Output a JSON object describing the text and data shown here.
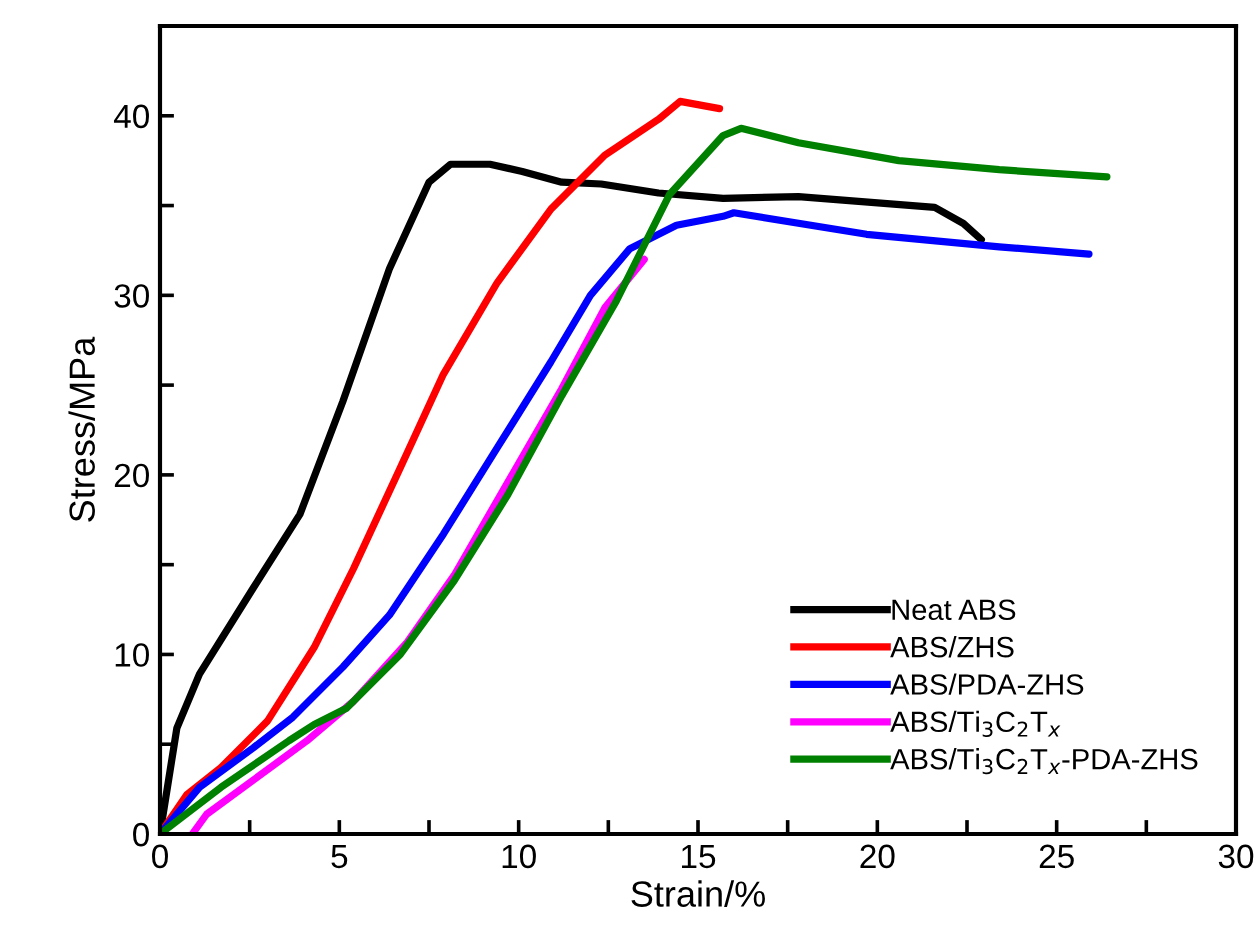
{
  "chart_data": {
    "type": "line",
    "xlabel": "Strain/%",
    "ylabel": "Stress/MPa",
    "xlim": [
      0,
      30
    ],
    "ylim": [
      0,
      45
    ],
    "xticks": [
      0,
      {
        "value": 2.5,
        "label": null
      },
      5,
      {
        "value": 7.5,
        "label": null
      },
      10,
      {
        "value": 12.5,
        "label": null
      },
      15,
      {
        "value": 17.5,
        "label": null
      },
      20,
      {
        "value": 22.5,
        "label": null
      },
      25,
      {
        "value": 27.5,
        "label": null
      },
      30
    ],
    "yticks": [
      0,
      {
        "value": 5,
        "label": null
      },
      10,
      {
        "value": 15,
        "label": null
      },
      20,
      {
        "value": 25,
        "label": null
      },
      30,
      {
        "value": 35,
        "label": null
      },
      40
    ],
    "grid": false,
    "legend": "bottom right",
    "marker": "none",
    "line_style": "solid",
    "series": [
      {
        "name": "Neat ABS",
        "color": "#000000",
        "x": [
          0,
          0.47,
          1.1,
          2.6,
          3.9,
          5.1,
          6.4,
          7.5,
          8.1,
          9.2,
          10.1,
          11.2,
          12.3,
          13.9,
          15.7,
          17.8,
          21.6,
          22.4,
          22.9
        ],
        "values": [
          0,
          5.9,
          8.9,
          13.7,
          17.8,
          24.1,
          31.5,
          36.3,
          37.3,
          37.3,
          36.9,
          36.3,
          36.2,
          35.7,
          35.4,
          35.5,
          34.9,
          34.0,
          33.1
        ]
      },
      {
        "name": "ABS/ZHS",
        "color": "#ff0000",
        "x": [
          0,
          0.75,
          1.7,
          3.0,
          4.3,
          5.4,
          6.7,
          7.9,
          9.4,
          10.9,
          12.4,
          13.9,
          14.5,
          15.6
        ],
        "values": [
          0,
          2.2,
          3.7,
          6.3,
          10.4,
          14.8,
          20.4,
          25.6,
          30.7,
          34.8,
          37.8,
          39.8,
          40.8,
          40.4
        ]
      },
      {
        "name": "ABS/PDA-ZHS",
        "color": "#0000ff",
        "x": [
          0,
          1.1,
          2.6,
          3.7,
          5.1,
          6.4,
          7.9,
          9.4,
          10.9,
          12.0,
          13.1,
          14.4,
          15.7,
          16.0,
          19.7,
          23.4,
          25.9
        ],
        "values": [
          0,
          2.6,
          4.8,
          6.5,
          9.3,
          12.2,
          16.7,
          21.5,
          26.3,
          30.0,
          32.6,
          33.9,
          34.4,
          34.6,
          33.4,
          32.7,
          32.3
        ]
      },
      {
        "name": "ABS/Ti$_{3}$C$_{2}$T$_{x}$",
        "color": "#ff00ff",
        "x": [
          0.9,
          1.3,
          2.6,
          4.1,
          5.4,
          6.9,
          8.2,
          9.7,
          11.2,
          12.4,
          13.5
        ],
        "values": [
          0,
          1.1,
          3.0,
          5.2,
          7.4,
          10.7,
          14.4,
          19.6,
          24.8,
          29.3,
          32.0
        ]
      },
      {
        "name": "ABS/Ti$_{3}$C$_{2}$T$_{x}$-PDA-ZHS",
        "color": "#008000",
        "x": [
          0,
          1.7,
          3.6,
          4.3,
          5.2,
          6.7,
          8.2,
          9.7,
          11.2,
          12.7,
          14.2,
          15.7,
          16.2,
          17.8,
          20.6,
          23.4,
          26.4
        ],
        "values": [
          0,
          2.6,
          5.2,
          6.1,
          7.0,
          10.0,
          14.1,
          18.9,
          24.4,
          29.6,
          35.6,
          38.9,
          39.3,
          38.5,
          37.5,
          37.0,
          36.6
        ]
      }
    ]
  }
}
